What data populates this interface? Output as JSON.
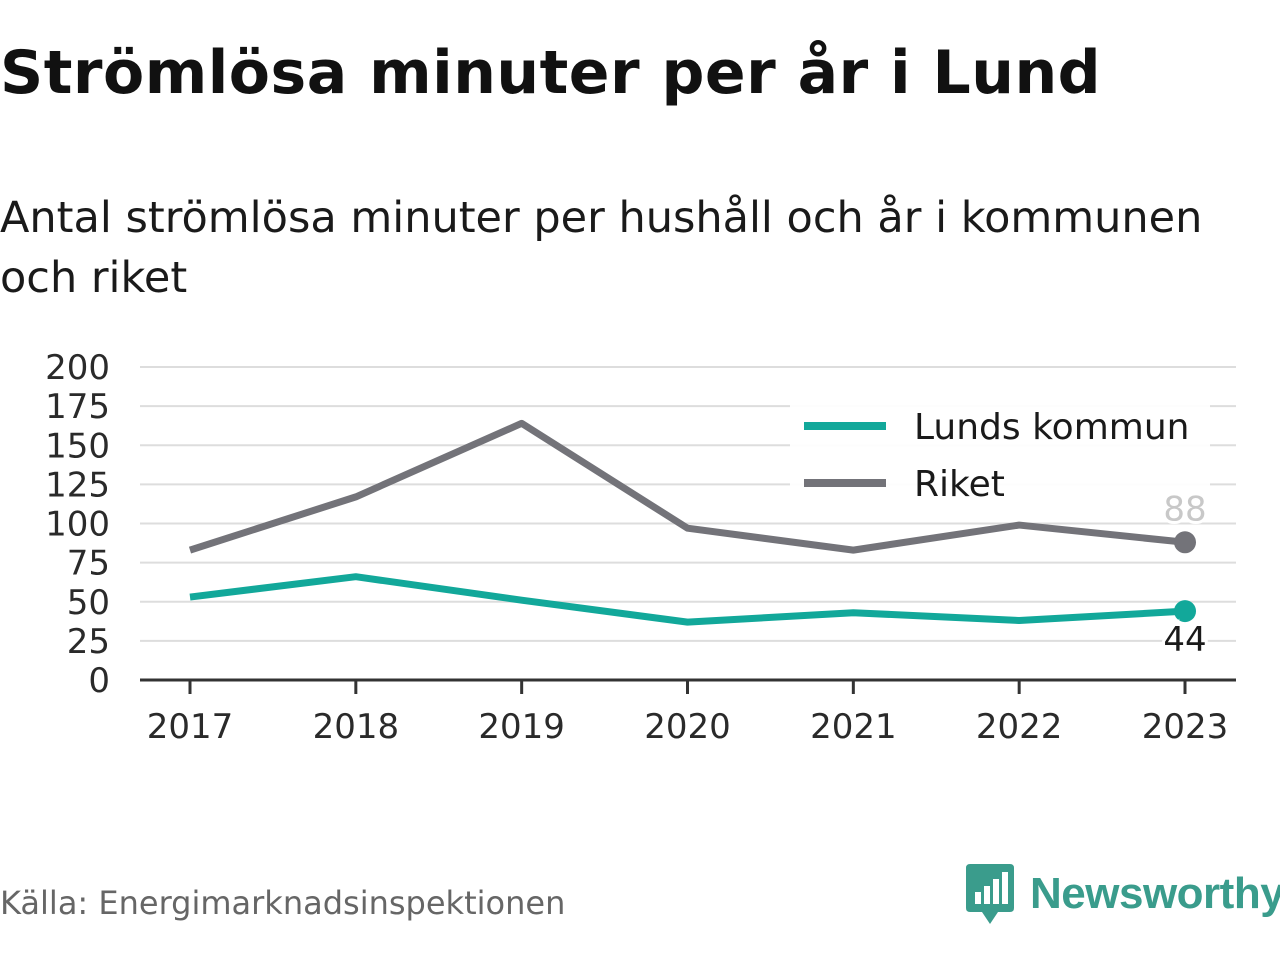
{
  "header": {
    "title": "Strömlösa minuter per år i Lund",
    "subtitle": "Antal strömlösa minuter per hushåll och år i kommunen och riket"
  },
  "footer": {
    "source": "Källa: Energimarknadsinspektionen",
    "brand": "Newsworthy",
    "brand_icon": "bar-chart-speech-bubble-icon"
  },
  "colors": {
    "lund": "#12a89a",
    "riket": "#737379",
    "grid": "#dddddd",
    "axis": "#333333",
    "brand": "#3a9c8c"
  },
  "chart_data": {
    "type": "line",
    "x": [
      "2017",
      "2018",
      "2019",
      "2020",
      "2021",
      "2022",
      "2023"
    ],
    "ylim": [
      0,
      200
    ],
    "yticks": [
      "0",
      "25",
      "50",
      "75",
      "100",
      "125",
      "150",
      "175",
      "200"
    ],
    "grid": true,
    "legend": "top-right",
    "series": [
      {
        "name": "Lunds kommun",
        "color": "#12a89a",
        "values": [
          53,
          66,
          51,
          37,
          43,
          38,
          44
        ],
        "end_label": "44"
      },
      {
        "name": "Riket",
        "color": "#737379",
        "values": [
          83,
          117,
          164,
          97,
          83,
          99,
          88
        ],
        "end_label": "88"
      }
    ]
  }
}
